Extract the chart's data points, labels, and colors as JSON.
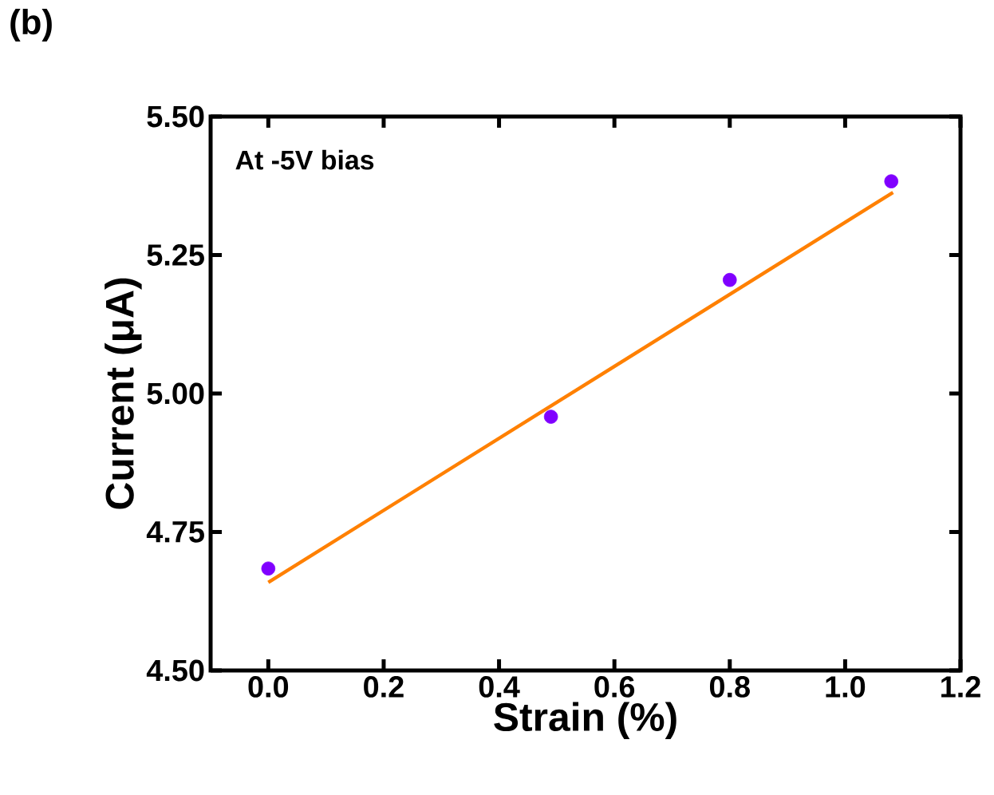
{
  "chart_data": {
    "type": "scatter",
    "title": "(b)",
    "xlabel": "Strain (%)",
    "ylabel": "Current (μA)",
    "annotations": [
      "At -5V bias"
    ],
    "xlim": [
      -0.1,
      1.2
    ],
    "xticks": [
      {
        "value": 0,
        "label": "0.0"
      },
      {
        "value": 0.2,
        "label": "0.2"
      },
      {
        "value": 0.4,
        "label": "0.4"
      },
      {
        "value": 0.6,
        "label": "0.6"
      },
      {
        "value": 0.8,
        "label": "0.8"
      },
      {
        "value": 1.0,
        "label": "1.0"
      },
      {
        "value": 1.2,
        "label": "1.2"
      }
    ],
    "ylim": [
      4.5,
      5.5
    ],
    "yticks": [
      {
        "value": 4.5,
        "label": "4.50"
      },
      {
        "value": 4.75,
        "label": "4.75"
      },
      {
        "value": 5.0,
        "label": "5.00"
      },
      {
        "value": 5.25,
        "label": "5.25"
      },
      {
        "value": 5.5,
        "label": "5.50"
      }
    ],
    "grid": false,
    "marker": "circle",
    "series": [
      {
        "color": "#8000ff",
        "x": [
          0,
          0.49,
          0.8,
          1.08
        ],
        "values": [
          4.684,
          4.958,
          5.205,
          5.383
        ]
      },
      {
        "type": "line",
        "marker": "none",
        "color": "#ff8000",
        "x": [
          0,
          1.083
        ],
        "values": [
          4.659,
          5.363
        ]
      }
    ]
  }
}
